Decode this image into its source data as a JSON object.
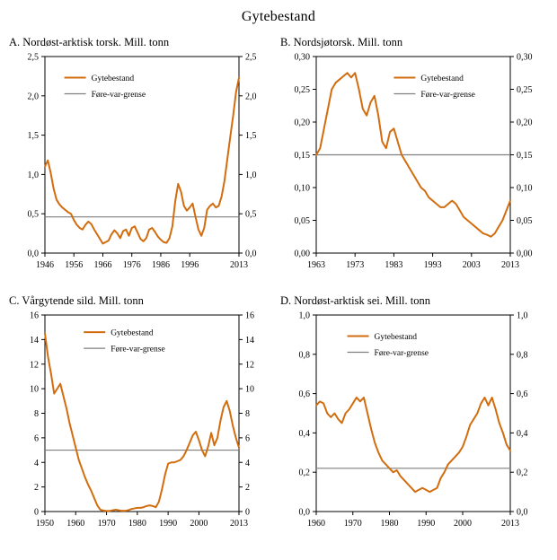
{
  "figure": {
    "title": "Gytebestand"
  },
  "legend": {
    "series": "Gytebestand",
    "limit": "Føre-var-grense"
  },
  "colors": {
    "series": "#d26d0f",
    "limit": "#7f7f7f",
    "axis": "#000000"
  },
  "chart_data": [
    {
      "type": "line",
      "title": "A.  Nordøst-arktisk torsk. Mill. tonn",
      "ylabel": "Mill. tonn",
      "x_min": 1946,
      "x_max": 2013,
      "y_min": 0,
      "y_max": 2.5,
      "x_ticks": [
        {
          "v": 1946,
          "label": "1946"
        },
        {
          "v": 1956,
          "label": "1956"
        },
        {
          "v": 1966,
          "label": "1966"
        },
        {
          "v": 1976,
          "label": "1976"
        },
        {
          "v": 1986,
          "label": "1986"
        },
        {
          "v": 1996,
          "label": "1996"
        },
        {
          "v": 2013,
          "label": "2013"
        }
      ],
      "y_ticks": [
        {
          "v": 0,
          "label": "0,0"
        },
        {
          "v": 0.5,
          "label": "0,5"
        },
        {
          "v": 1,
          "label": "1,0"
        },
        {
          "v": 1.5,
          "label": "1,5"
        },
        {
          "v": 2,
          "label": "2,0"
        },
        {
          "v": 2.5,
          "label": "2,5"
        }
      ],
      "limit": 0.46,
      "legend_pos": {
        "x": 0.1,
        "y": 0.08
      },
      "series": {
        "name": "Gytebestand",
        "start_year": 1946,
        "values": [
          1.1,
          1.18,
          1.02,
          0.82,
          0.68,
          0.62,
          0.58,
          0.55,
          0.52,
          0.5,
          0.42,
          0.36,
          0.32,
          0.3,
          0.36,
          0.4,
          0.37,
          0.3,
          0.24,
          0.18,
          0.12,
          0.14,
          0.16,
          0.24,
          0.29,
          0.25,
          0.19,
          0.28,
          0.3,
          0.22,
          0.32,
          0.34,
          0.26,
          0.18,
          0.15,
          0.19,
          0.3,
          0.32,
          0.27,
          0.21,
          0.17,
          0.14,
          0.13,
          0.19,
          0.34,
          0.66,
          0.88,
          0.78,
          0.6,
          0.54,
          0.58,
          0.63,
          0.46,
          0.3,
          0.22,
          0.32,
          0.55,
          0.6,
          0.63,
          0.58,
          0.6,
          0.72,
          0.92,
          1.2,
          1.48,
          1.75,
          2.05,
          2.23
        ]
      }
    },
    {
      "type": "line",
      "title": "B.  Nordsjøtorsk. Mill. tonn",
      "ylabel": "Mill. tonn",
      "x_min": 1963,
      "x_max": 2013,
      "y_min": 0,
      "y_max": 0.3,
      "x_ticks": [
        {
          "v": 1963,
          "label": "1963"
        },
        {
          "v": 1973,
          "label": "1973"
        },
        {
          "v": 1983,
          "label": "1983"
        },
        {
          "v": 1993,
          "label": "1993"
        },
        {
          "v": 2003,
          "label": "2003"
        },
        {
          "v": 2013,
          "label": "2013"
        }
      ],
      "y_ticks": [
        {
          "v": 0,
          "label": "0,00"
        },
        {
          "v": 0.05,
          "label": "0,05"
        },
        {
          "v": 0.1,
          "label": "0,10"
        },
        {
          "v": 0.15,
          "label": "0,15"
        },
        {
          "v": 0.2,
          "label": "0,20"
        },
        {
          "v": 0.25,
          "label": "0,25"
        },
        {
          "v": 0.3,
          "label": "0,30"
        }
      ],
      "limit": 0.15,
      "legend_pos": {
        "x": 0.4,
        "y": 0.08
      },
      "series": {
        "name": "Gytebestand",
        "start_year": 1963,
        "values": [
          0.15,
          0.16,
          0.19,
          0.22,
          0.25,
          0.26,
          0.265,
          0.27,
          0.275,
          0.268,
          0.275,
          0.25,
          0.22,
          0.21,
          0.23,
          0.24,
          0.21,
          0.17,
          0.16,
          0.185,
          0.19,
          0.17,
          0.15,
          0.14,
          0.13,
          0.12,
          0.11,
          0.1,
          0.095,
          0.085,
          0.08,
          0.075,
          0.07,
          0.07,
          0.075,
          0.08,
          0.075,
          0.065,
          0.055,
          0.05,
          0.045,
          0.04,
          0.035,
          0.03,
          0.028,
          0.025,
          0.03,
          0.04,
          0.05,
          0.065,
          0.08
        ]
      }
    },
    {
      "type": "line",
      "title": "C.  Vårgytende sild. Mill. tonn",
      "ylabel": "Mill. tonn",
      "x_min": 1950,
      "x_max": 2013,
      "y_min": 0,
      "y_max": 16,
      "x_ticks": [
        {
          "v": 1950,
          "label": "1950"
        },
        {
          "v": 1960,
          "label": "1960"
        },
        {
          "v": 1970,
          "label": "1970"
        },
        {
          "v": 1980,
          "label": "1980"
        },
        {
          "v": 1990,
          "label": "1990"
        },
        {
          "v": 2000,
          "label": "2000"
        },
        {
          "v": 2013,
          "label": "2013"
        }
      ],
      "y_ticks": [
        {
          "v": 0,
          "label": "0"
        },
        {
          "v": 2,
          "label": "2"
        },
        {
          "v": 4,
          "label": "4"
        },
        {
          "v": 6,
          "label": "6"
        },
        {
          "v": 8,
          "label": "8"
        },
        {
          "v": 10,
          "label": "10"
        },
        {
          "v": 12,
          "label": "12"
        },
        {
          "v": 14,
          "label": "14"
        },
        {
          "v": 16,
          "label": "16"
        }
      ],
      "limit": 5,
      "legend_pos": {
        "x": 0.2,
        "y": 0.06
      },
      "series": {
        "name": "Gytebestand",
        "start_year": 1950,
        "values": [
          14.5,
          12.6,
          11.2,
          9.6,
          10.0,
          10.4,
          9.4,
          8.4,
          7.2,
          6.2,
          5.2,
          4.2,
          3.5,
          2.8,
          2.2,
          1.7,
          1.1,
          0.5,
          0.15,
          0.08,
          0.05,
          0.05,
          0.1,
          0.15,
          0.1,
          0.06,
          0.06,
          0.1,
          0.2,
          0.25,
          0.3,
          0.3,
          0.35,
          0.45,
          0.5,
          0.45,
          0.35,
          0.8,
          1.8,
          3.0,
          3.9,
          4.0,
          4.0,
          4.1,
          4.2,
          4.5,
          5.0,
          5.6,
          6.2,
          6.5,
          5.8,
          5.0,
          4.5,
          5.3,
          6.4,
          5.4,
          6.0,
          7.4,
          8.5,
          9.0,
          8.2,
          7.0,
          6.0,
          5.2
        ]
      }
    },
    {
      "type": "line",
      "title": "D.  Nordøst-arktisk sei. Mill. tonn",
      "ylabel": "Mill. tonn",
      "x_min": 1960,
      "x_max": 2013,
      "y_min": 0,
      "y_max": 1.0,
      "x_ticks": [
        {
          "v": 1960,
          "label": "1960"
        },
        {
          "v": 1970,
          "label": "1970"
        },
        {
          "v": 1980,
          "label": "1980"
        },
        {
          "v": 1990,
          "label": "1990"
        },
        {
          "v": 2000,
          "label": "2000"
        },
        {
          "v": 2013,
          "label": "2013"
        }
      ],
      "y_ticks": [
        {
          "v": 0,
          "label": "0,0"
        },
        {
          "v": 0.2,
          "label": "0,2"
        },
        {
          "v": 0.4,
          "label": "0,4"
        },
        {
          "v": 0.6,
          "label": "0,6"
        },
        {
          "v": 0.8,
          "label": "0,8"
        },
        {
          "v": 1.0,
          "label": "1,0"
        }
      ],
      "limit": 0.22,
      "legend_pos": {
        "x": 0.16,
        "y": 0.08
      },
      "series": {
        "name": "Gytebestand",
        "start_year": 1960,
        "values": [
          0.54,
          0.56,
          0.55,
          0.5,
          0.48,
          0.5,
          0.47,
          0.45,
          0.5,
          0.52,
          0.55,
          0.58,
          0.56,
          0.58,
          0.5,
          0.42,
          0.35,
          0.3,
          0.26,
          0.24,
          0.22,
          0.2,
          0.21,
          0.18,
          0.16,
          0.14,
          0.12,
          0.1,
          0.11,
          0.12,
          0.11,
          0.1,
          0.11,
          0.12,
          0.17,
          0.2,
          0.24,
          0.26,
          0.28,
          0.3,
          0.33,
          0.38,
          0.44,
          0.47,
          0.5,
          0.55,
          0.58,
          0.54,
          0.58,
          0.52,
          0.45,
          0.4,
          0.34,
          0.31
        ]
      }
    }
  ]
}
